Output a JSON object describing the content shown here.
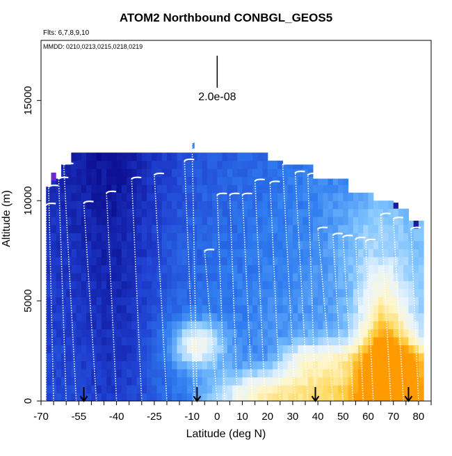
{
  "chart_data": {
    "type": "heatmap",
    "title": "ATOM2 Northbound CONBGL_GEOS5",
    "subtitle": "Flts: 6,7,8,9,10",
    "annotation": "MMDD: 0210,0213,0215,0218,0219",
    "xlabel": "Latitude (deg N)",
    "ylabel": "Altitude (m)",
    "xlim": [
      -70,
      85
    ],
    "ylim": [
      0,
      18000
    ],
    "x_ticks": [
      "-70",
      "-55",
      "-40",
      "-25",
      "-10",
      "0",
      "10",
      "20",
      "30",
      "40",
      "50",
      "60",
      "70",
      "80"
    ],
    "x_tick_values": [
      -70,
      -55,
      -40,
      -25,
      -10,
      0,
      10,
      20,
      30,
      40,
      50,
      60,
      70,
      80
    ],
    "y_ticks": [
      "0",
      "5000",
      "10000",
      "15000"
    ],
    "y_tick_values": [
      0,
      5000,
      10000,
      15000
    ],
    "scale_bar_label": "2.0e-08",
    "scale_bar_x": 0,
    "arrow_latitudes": [
      -53,
      -8,
      39,
      76
    ],
    "colormap": [
      "#0a0a8a",
      "#1f3fd0",
      "#2f7df0",
      "#7fc4ff",
      "#e8f4ff",
      "#fff6c8",
      "#ffd24a",
      "#ff9a00"
    ],
    "profiles": [
      {
        "lat_bottom": -68,
        "lat_top": -68,
        "top_alt": 9800
      },
      {
        "lat_bottom": -65,
        "lat_top": -67,
        "top_alt": 10700
      },
      {
        "lat_bottom": -60,
        "lat_top": -63,
        "top_alt": 11100
      },
      {
        "lat_bottom": -56,
        "lat_top": -61,
        "top_alt": 11800
      },
      {
        "lat_bottom": -48,
        "lat_top": -53,
        "top_alt": 9900
      },
      {
        "lat_bottom": -40,
        "lat_top": -44,
        "top_alt": 10400
      },
      {
        "lat_bottom": -30,
        "lat_top": -34,
        "top_alt": 11100
      },
      {
        "lat_bottom": -20,
        "lat_top": -25,
        "top_alt": 11300
      },
      {
        "lat_bottom": -9,
        "lat_top": -13,
        "top_alt": 12000
      },
      {
        "lat_bottom": -8,
        "lat_top": -10,
        "top_alt": 12900
      },
      {
        "lat_bottom": 0,
        "lat_top": -5,
        "top_alt": 7500
      },
      {
        "lat_bottom": 3,
        "lat_top": 0,
        "top_alt": 10300
      },
      {
        "lat_bottom": 8,
        "lat_top": 5,
        "top_alt": 10300
      },
      {
        "lat_bottom": 14,
        "lat_top": 10,
        "top_alt": 10300
      },
      {
        "lat_bottom": 19,
        "lat_top": 15,
        "top_alt": 11000
      },
      {
        "lat_bottom": 25,
        "lat_top": 21,
        "top_alt": 10900
      },
      {
        "lat_bottom": 31,
        "lat_top": 26,
        "top_alt": 11800
      },
      {
        "lat_bottom": 36,
        "lat_top": 31,
        "top_alt": 11400
      },
      {
        "lat_bottom": 39,
        "lat_top": 36,
        "top_alt": 11300
      },
      {
        "lat_bottom": 46,
        "lat_top": 40,
        "top_alt": 8600
      },
      {
        "lat_bottom": 50,
        "lat_top": 46,
        "top_alt": 8300
      },
      {
        "lat_bottom": 54,
        "lat_top": 50,
        "top_alt": 8200
      },
      {
        "lat_bottom": 58,
        "lat_top": 55,
        "top_alt": 8100
      },
      {
        "lat_bottom": 62,
        "lat_top": 59,
        "top_alt": 8000
      },
      {
        "lat_bottom": 69,
        "lat_top": 65,
        "top_alt": 9300
      },
      {
        "lat_bottom": 74,
        "lat_top": 70,
        "top_alt": 9100
      },
      {
        "lat_bottom": 80,
        "lat_top": 77,
        "top_alt": 8600
      }
    ]
  }
}
